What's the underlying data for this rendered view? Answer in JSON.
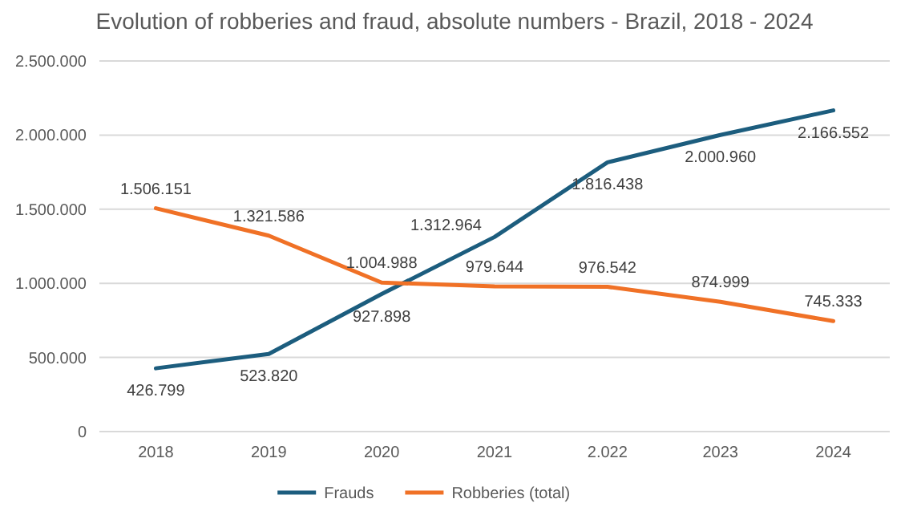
{
  "chart_data": {
    "type": "line",
    "title": "Evolution of robberies and fraud, absolute numbers - Brazil, 2018 - 2024",
    "categories": [
      "2018",
      "2019",
      "2020",
      "2021",
      "2.022",
      "2023",
      "2024"
    ],
    "series": [
      {
        "name": "Frauds",
        "color": "#1c5d7e",
        "values": [
          426799,
          523820,
          927898,
          1312964,
          1816438,
          2000960,
          2166552
        ],
        "value_labels": [
          "426.799",
          "523.820",
          "927.898",
          "1.312.964",
          "1.816.438",
          "2.000.960",
          "2.166.552"
        ]
      },
      {
        "name": "Robberies (total)",
        "color": "#f07126",
        "values": [
          1506151,
          1321586,
          1004988,
          979644,
          976542,
          874999,
          745333
        ],
        "value_labels": [
          "1.506.151",
          "1.321.586",
          "1.004.988",
          "979.644",
          "976.542",
          "874.999",
          "745.333"
        ]
      }
    ],
    "ylim": [
      0,
      2500000
    ],
    "yticks": [
      {
        "value": 0,
        "label": "0"
      },
      {
        "value": 500000,
        "label": "500.000"
      },
      {
        "value": 1000000,
        "label": "1.000.000"
      },
      {
        "value": 1500000,
        "label": "1.500.000"
      },
      {
        "value": 2000000,
        "label": "2.000.000"
      },
      {
        "value": 2500000,
        "label": "2.500.000"
      }
    ],
    "grid": "y",
    "legend": "bottom",
    "marker": "none",
    "line_style": "solid"
  }
}
